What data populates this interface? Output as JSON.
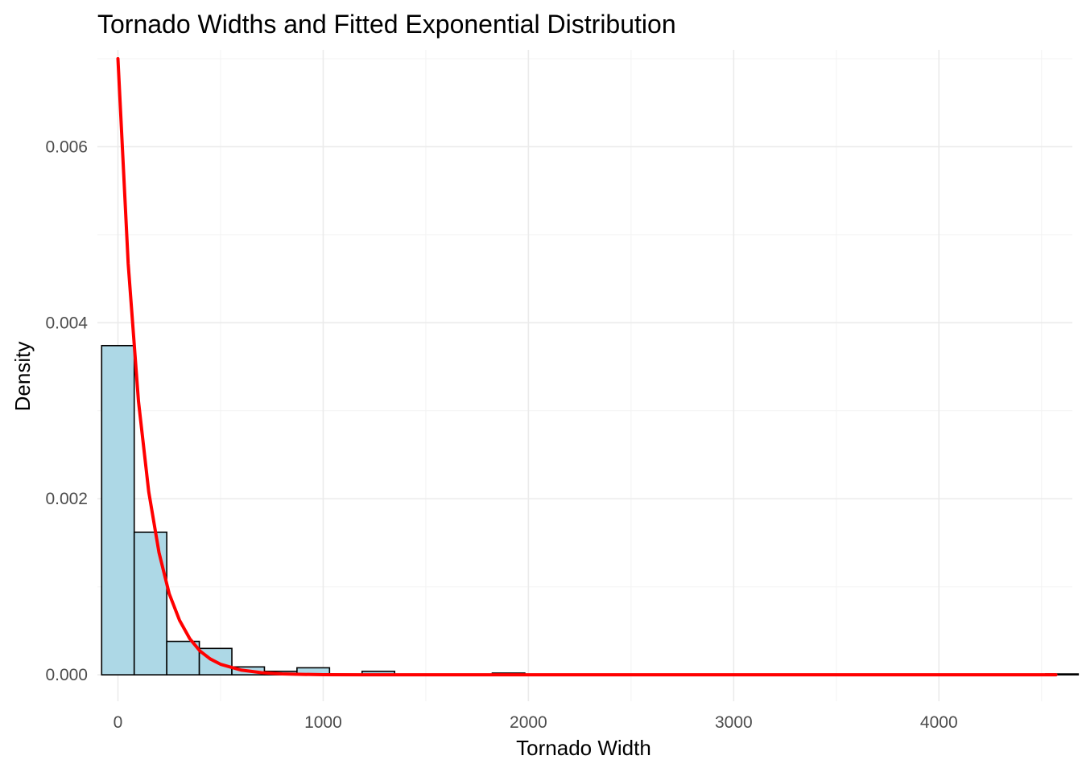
{
  "chart_data": {
    "type": "bar",
    "subtype": "histogram-with-density-curve",
    "title": "Tornado Widths and Fitted Exponential Distribution",
    "xlabel": "Tornado Width",
    "ylabel": "Density",
    "xlim": [
      -100,
      4650
    ],
    "ylim": [
      -0.0003,
      0.0071
    ],
    "x_ticks": [
      {
        "value": 0,
        "label": "0"
      },
      {
        "value": 1000,
        "label": "1000"
      },
      {
        "value": 2000,
        "label": "2000"
      },
      {
        "value": 3000,
        "label": "3000"
      },
      {
        "value": 4000,
        "label": "4000"
      }
    ],
    "x_minor_ticks": [
      500,
      1500,
      2500,
      3500,
      4500
    ],
    "y_ticks": [
      {
        "value": 0,
        "label": "0.000"
      },
      {
        "value": 0.002,
        "label": "0.002"
      },
      {
        "value": 0.004,
        "label": "0.004"
      },
      {
        "value": 0.006,
        "label": "0.006"
      }
    ],
    "y_minor_ticks": [
      0.001,
      0.003,
      0.005,
      0.007
    ],
    "grid": true,
    "histogram": {
      "bin_width": 158.6,
      "start": -79.3,
      "fill_color": "#add8e6",
      "border_color": "#000000",
      "densities": [
        0.00374,
        0.00162,
        0.00038,
        0.0003,
        9e-05,
        4e-05,
        8e-05,
        0.0,
        4e-05,
        0.0,
        0.0,
        0.0,
        2e-05,
        0.0,
        0.0,
        0.0,
        0.0,
        0.0,
        0.0,
        0.0,
        0.0,
        0.0,
        0.0,
        0.0,
        0.0,
        0.0,
        0.0,
        0.0,
        0.0,
        1e-05
      ]
    },
    "series": [
      {
        "type": "line",
        "color": "#ff0000",
        "x": [
          0,
          50,
          100,
          150,
          200,
          250,
          300,
          350,
          400,
          450,
          500,
          600,
          700,
          800,
          900,
          1000,
          1200,
          1400,
          1600,
          2000,
          2500,
          3000,
          3500,
          4000,
          4570
        ],
        "values": [
          0.007,
          0.00467,
          0.00311,
          0.00208,
          0.00139,
          0.00092,
          0.00062,
          0.00041,
          0.00027,
          0.00018,
          0.00012,
          5.4e-05,
          2.4e-05,
          1.1e-05,
          5e-06,
          2e-06,
          5e-07,
          1e-07,
          0.0,
          0.0,
          0.0,
          0.0,
          0.0,
          0.0,
          0.0
        ]
      }
    ]
  }
}
